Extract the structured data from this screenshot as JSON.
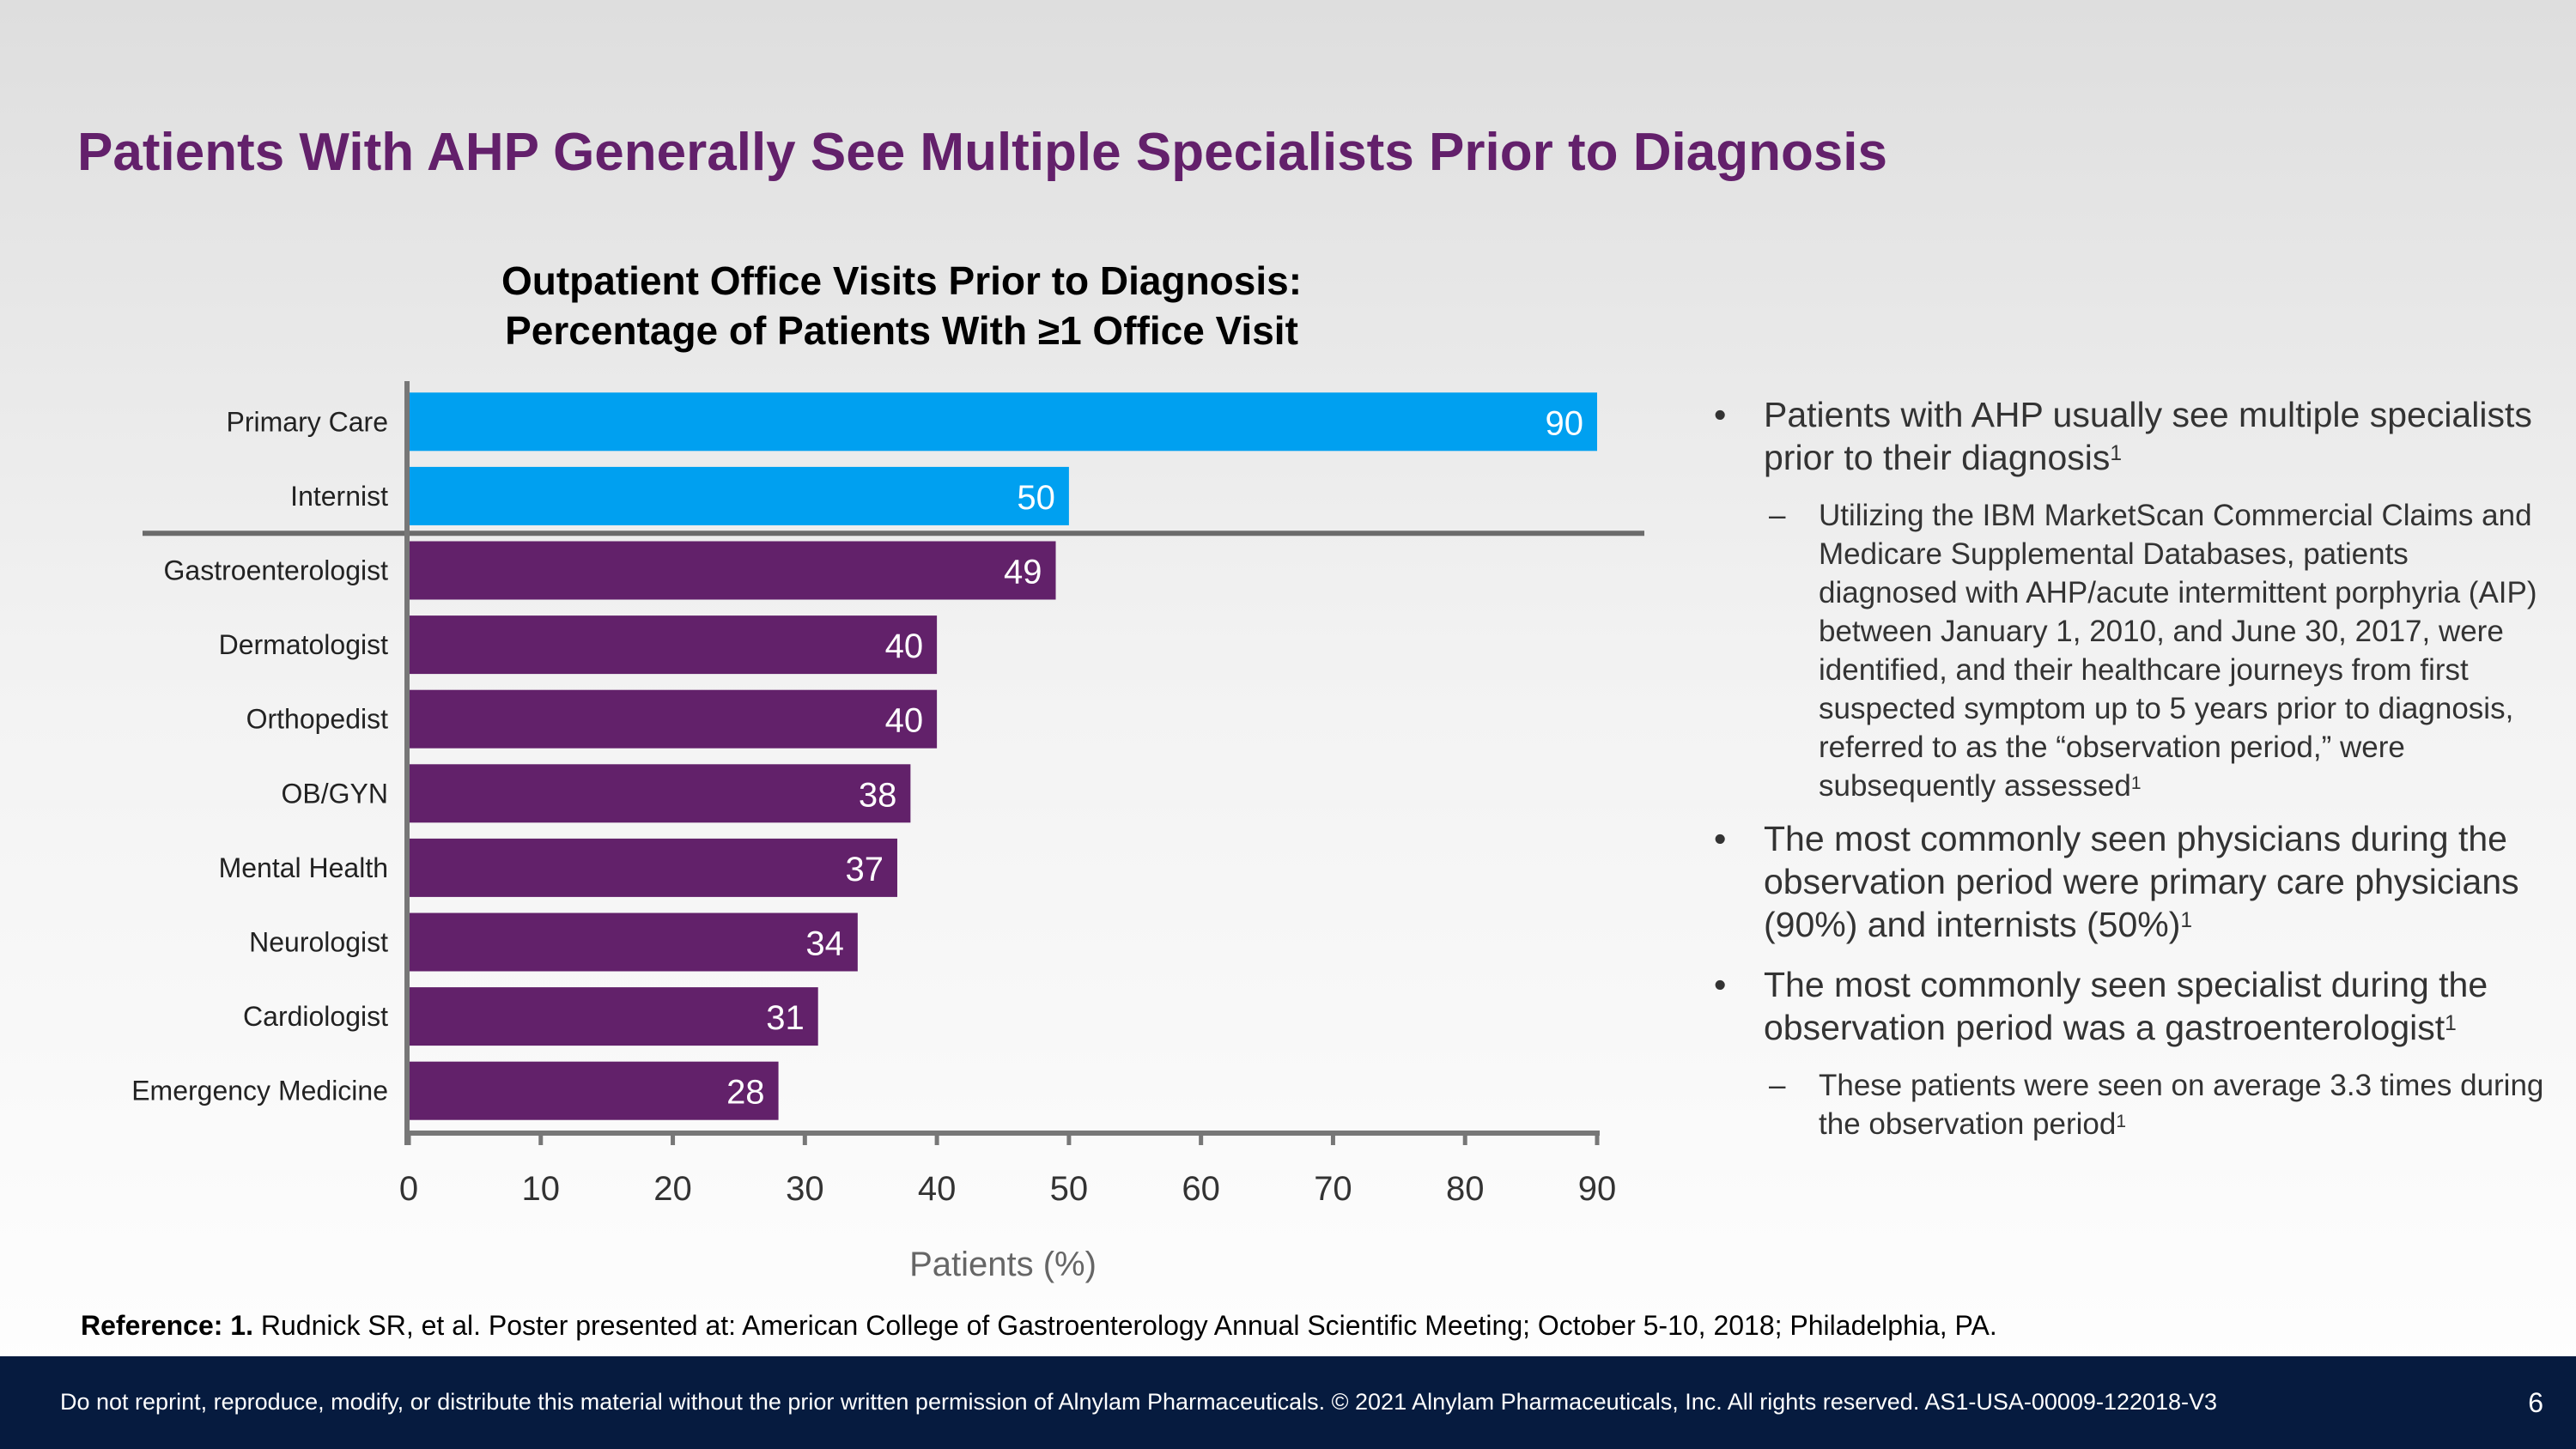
{
  "slide": {
    "title": "Patients With AHP Generally See Multiple Specialists Prior to Diagnosis",
    "page_number": "6"
  },
  "chart_data": {
    "type": "bar",
    "orientation": "horizontal",
    "title_line1": "Outpatient Office Visits Prior to Diagnosis:",
    "title_line2": "Percentage of Patients With ≥1 Office Visit",
    "xlabel": "Patients (%)",
    "ylabel": "",
    "xlim": [
      0,
      90
    ],
    "xticks": [
      0,
      10,
      20,
      30,
      40,
      50,
      60,
      70,
      80,
      90
    ],
    "grid": false,
    "categories": [
      "Primary Care",
      "Internist",
      "Gastroenterologist",
      "Dermatologist",
      "Orthopedist",
      "OB/GYN",
      "Mental Health",
      "Neurologist",
      "Cardiologist",
      "Emergency Medicine"
    ],
    "values": [
      90,
      50,
      49,
      40,
      40,
      38,
      37,
      34,
      31,
      28
    ],
    "bar_colors": [
      "#00a0f0",
      "#00a0f0",
      "#62216a",
      "#62216a",
      "#62216a",
      "#62216a",
      "#62216a",
      "#62216a",
      "#62216a",
      "#62216a"
    ],
    "separator_after_index": 1
  },
  "bullets": [
    {
      "text": "Patients with AHP usually see multiple specialists prior to their diagnosis",
      "sup": "1",
      "subs": [
        {
          "text": "Utilizing the IBM MarketScan Commercial Claims and Medicare Supplemental Databases, patients diagnosed with AHP/acute intermittent porphyria (AIP) between January 1, 2010, and June 30, 2017, were identified, and their healthcare journeys from first suspected symptom up to 5 years prior to diagnosis, referred to as the “observation period,” were subsequently assessed",
          "sup": "1"
        }
      ]
    },
    {
      "text": "The most commonly seen physicians during the observation period were primary care physicians (90%) and internists (50%)",
      "sup": "1",
      "subs": []
    },
    {
      "text": "The most commonly seen specialist during the observation period was a gastroenterologist",
      "sup": "1",
      "subs": [
        {
          "text": "These patients were seen on average 3.3 times during the observation period",
          "sup": "1"
        }
      ]
    }
  ],
  "markers": {
    "bullet": "•",
    "dash": "–"
  },
  "reference": {
    "label": "Reference: 1.",
    "text": " Rudnick SR, et al. Poster presented at: American College of Gastroenterology Annual Scientific Meeting; October 5-10, 2018; Philadelphia, PA."
  },
  "footer": {
    "text": "Do not reprint, reproduce, modify, or distribute this material without the prior written permission of Alnylam Pharmaceuticals. © 2021 Alnylam Pharmaceuticals, Inc. All rights reserved. AS1-USA-00009-122018-V3"
  }
}
